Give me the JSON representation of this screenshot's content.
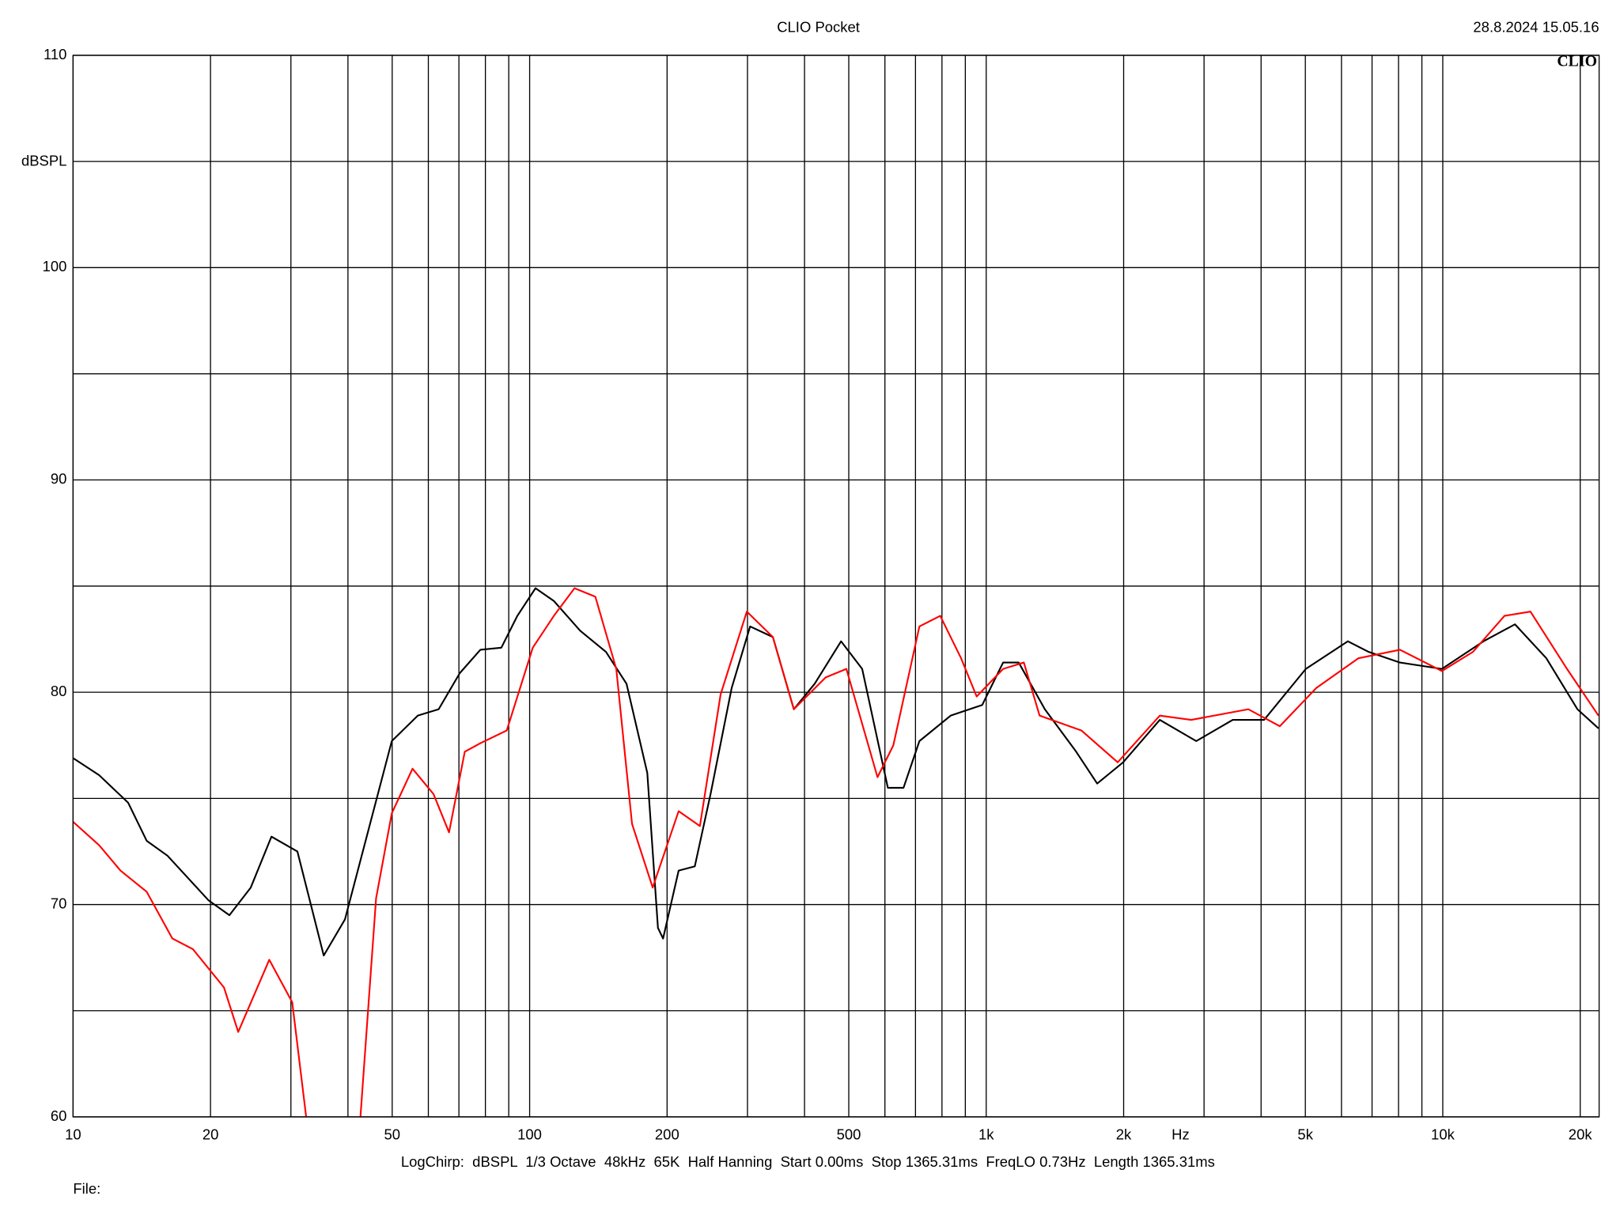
{
  "chart_data": {
    "type": "line",
    "title": "CLIO Pocket",
    "timestamp": "28.8.2024 15.05.16",
    "logo": "CLIO",
    "xlabel": "Hz",
    "ylabel": "dBSPL",
    "footer": "LogChirp:  dBSPL  1/3 Octave  48kHz  65K  Half Hanning  Start 0.00ms  Stop 1365.31ms  FreqLO 0.73Hz  Length 1365.31ms",
    "file_label": "File:",
    "xscale": "log",
    "grid": true,
    "xlim": [
      10,
      22000
    ],
    "ylim": [
      60,
      110
    ],
    "xticks": [
      10,
      20,
      50,
      100,
      200,
      500,
      {
        "value": 1000,
        "label": "1k"
      },
      {
        "value": 2000,
        "label": "2k"
      },
      {
        "value": 5000,
        "label": "5k"
      },
      {
        "value": 10000,
        "label": "10k"
      },
      {
        "value": 20000,
        "label": "20k"
      }
    ],
    "xgrid": [
      10,
      20,
      30,
      40,
      50,
      60,
      70,
      80,
      90,
      100,
      200,
      300,
      400,
      500,
      600,
      700,
      800,
      900,
      1000,
      2000,
      3000,
      4000,
      5000,
      6000,
      7000,
      8000,
      9000,
      10000,
      20000
    ],
    "yticks": [
      60,
      70,
      80,
      90,
      100,
      110
    ],
    "ygrid_minor": [
      65,
      75,
      85,
      95,
      105
    ],
    "series": [
      {
        "color": "#000000",
        "x": [
          10,
          11.4,
          13.2,
          14.5,
          16.1,
          19.8,
          22.0,
          24.5,
          27.2,
          31.0,
          35.4,
          39.4,
          49.9,
          56.9,
          63.2,
          70.3,
          78.0,
          86.7,
          94,
          103,
          113,
          129,
          147,
          163,
          181,
          191,
          196,
          212,
          230,
          249,
          277,
          304,
          341,
          379,
          421,
          481,
          535,
          609,
          659,
          714,
          836,
          980,
          1089,
          1178,
          1344,
          1574,
          1750,
          1995,
          2400,
          2884,
          3467,
          4061,
          5012,
          6194,
          6884,
          8058,
          9954,
          12280,
          14390,
          16860,
          19720,
          21930
        ],
        "values": [
          76.9,
          76.1,
          74.8,
          73.0,
          72.3,
          70.2,
          69.5,
          70.8,
          73.2,
          72.5,
          67.6,
          69.3,
          77.7,
          78.9,
          79.2,
          80.9,
          82.0,
          82.1,
          83.6,
          84.9,
          84.3,
          82.9,
          81.9,
          80.4,
          76.2,
          68.9,
          68.4,
          71.6,
          71.8,
          75.2,
          80.2,
          83.1,
          82.6,
          79.2,
          80.4,
          82.4,
          81.1,
          75.5,
          75.5,
          77.7,
          78.9,
          79.4,
          81.4,
          81.4,
          79.2,
          77.2,
          75.7,
          76.7,
          78.7,
          77.7,
          78.7,
          78.7,
          81.1,
          82.4,
          81.9,
          81.4,
          81.1,
          82.4,
          83.2,
          81.6,
          79.2,
          78.3
        ]
      },
      {
        "color": "#ff0000",
        "x": [
          10,
          11.4,
          12.7,
          14.5,
          16.5,
          18.3,
          21.4,
          23.0,
          26.9,
          30.2,
          32.4,
          37,
          42.6,
          46.1,
          49.9,
          55.4,
          61.6,
          66.6,
          72.1,
          78.0,
          89.1,
          101.6,
          113,
          125.4,
          139.3,
          154.8,
          167.6,
          186,
          212,
          236,
          262,
          299,
          341,
          379,
          445,
          494,
          578,
          626,
          714,
          793,
          881,
          953,
          1089,
          1209,
          1309,
          1616,
          1941,
          2400,
          2812,
          3751,
          4395,
          5284,
          6531,
          8058,
          9954,
          11640,
          13650,
          15560,
          18710,
          21930
        ],
        "values": [
          73.9,
          72.8,
          71.6,
          70.6,
          68.4,
          67.9,
          66.1,
          64.0,
          67.4,
          65.4,
          60.0,
          null,
          60.0,
          70.3,
          74.3,
          76.4,
          75.2,
          73.4,
          77.2,
          77.6,
          78.2,
          82.1,
          83.6,
          84.9,
          84.5,
          81.1,
          73.8,
          70.8,
          74.4,
          73.7,
          79.9,
          83.8,
          82.6,
          79.2,
          80.7,
          81.1,
          76.0,
          77.5,
          83.1,
          83.6,
          81.6,
          79.8,
          81.1,
          81.4,
          78.9,
          78.2,
          76.7,
          78.9,
          78.7,
          79.2,
          78.4,
          80.2,
          81.6,
          82.0,
          81.0,
          81.9,
          83.6,
          83.8,
          81.1,
          78.9
        ]
      }
    ]
  }
}
